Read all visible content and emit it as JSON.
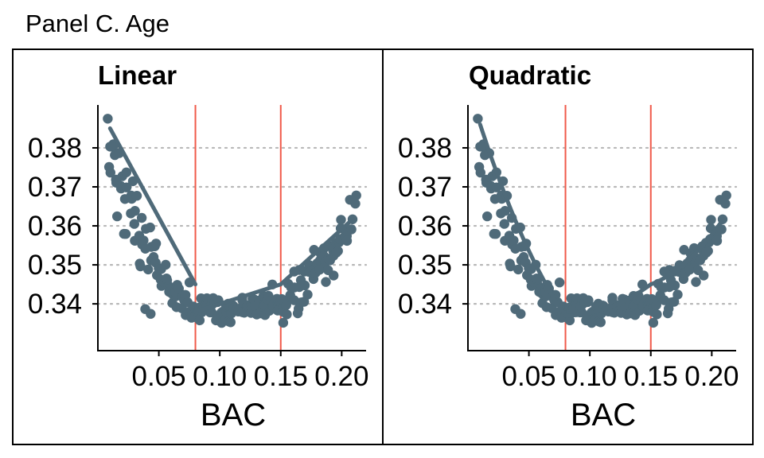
{
  "title": "Panel C. Age",
  "colors": {
    "points": "#4f6a79",
    "fit": "#4f6a79",
    "cutoff": "#f05a4a",
    "grid": "#b8b8b8",
    "axis": "#000000"
  },
  "chart_data": [
    {
      "type": "scatter",
      "facet": "Linear",
      "xlabel": "BAC",
      "ylabel": "",
      "xlim": [
        0.0,
        0.22
      ],
      "ylim": [
        0.328,
        0.391
      ],
      "xticks": [
        0.05,
        0.1,
        0.15,
        0.2
      ],
      "xtick_labels": [
        "0.05",
        "0.10",
        "0.15",
        "0.20"
      ],
      "yticks": [
        0.34,
        0.35,
        0.36,
        0.37,
        0.38
      ],
      "ytick_labels": [
        "0.34",
        "0.35",
        "0.36",
        "0.37",
        "0.38"
      ],
      "grid": "horizontal dotted",
      "cutoffs": [
        0.08,
        0.15
      ],
      "fit": "linear",
      "fit_segments": [
        {
          "x": [
            0.01,
            0.08
          ],
          "y": [
            0.385,
            0.345
          ]
        },
        {
          "x": [
            0.08,
            0.15
          ],
          "y": [
            0.338,
            0.345
          ]
        },
        {
          "x": [
            0.15,
            0.21
          ],
          "y": [
            0.345,
            0.362
          ]
        }
      ]
    },
    {
      "type": "scatter",
      "facet": "Quadratic",
      "xlabel": "BAC",
      "ylabel": "",
      "xlim": [
        0.0,
        0.22
      ],
      "ylim": [
        0.328,
        0.391
      ],
      "xticks": [
        0.05,
        0.1,
        0.15,
        0.2
      ],
      "xtick_labels": [
        "0.05",
        "0.10",
        "0.15",
        "0.20"
      ],
      "yticks": [
        0.34,
        0.35,
        0.36,
        0.37,
        0.38
      ],
      "ytick_labels": [
        "0.34",
        "0.35",
        "0.36",
        "0.37",
        "0.38"
      ],
      "grid": "horizontal dotted",
      "cutoffs": [
        0.08,
        0.15
      ],
      "fit": "quadratic",
      "fit_segments": [
        {
          "x": [
            0.01,
            0.045,
            0.08
          ],
          "y": [
            0.386,
            0.357,
            0.337
          ]
        },
        {
          "x": [
            0.08,
            0.115,
            0.15
          ],
          "y": [
            0.337,
            0.339,
            0.345
          ]
        },
        {
          "x": [
            0.15,
            0.18,
            0.21
          ],
          "y": [
            0.345,
            0.351,
            0.362
          ]
        }
      ]
    }
  ]
}
